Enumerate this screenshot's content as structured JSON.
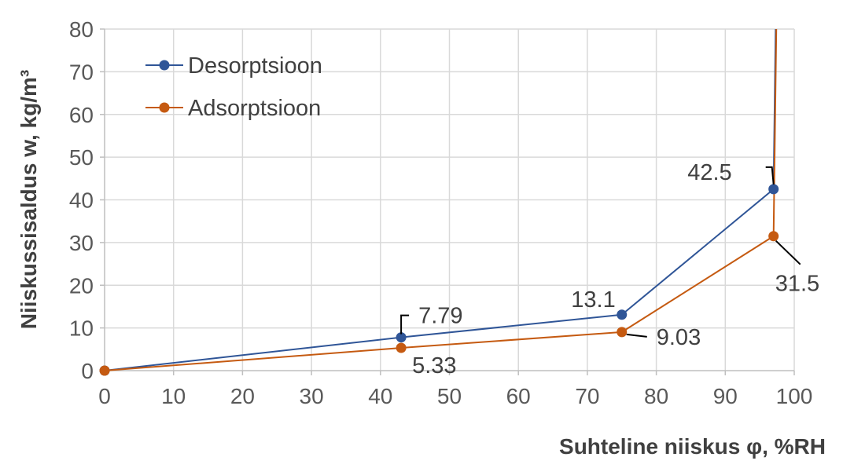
{
  "chart_data": {
    "type": "line",
    "xlabel": "Suhteline niiskus φ, %RH",
    "ylabel": "Niiskussisaldus w, kg/m³",
    "xlim": [
      0,
      100
    ],
    "ylim": [
      0,
      80
    ],
    "x_ticks": [
      0,
      10,
      20,
      30,
      40,
      50,
      60,
      70,
      80,
      90,
      100
    ],
    "y_ticks": [
      0,
      10,
      20,
      30,
      40,
      50,
      60,
      70,
      80
    ],
    "grid": true,
    "legend_position": "top-left",
    "series": [
      {
        "name": "Desorptsioon",
        "color": "#2f5597",
        "marker_points": [
          {
            "x": 0,
            "y": 0
          },
          {
            "x": 43,
            "y": 7.79,
            "label": "7.79"
          },
          {
            "x": 75,
            "y": 13.1,
            "label": "13.1"
          },
          {
            "x": 97,
            "y": 42.5,
            "label": "42.5"
          }
        ],
        "line_end": {
          "x": 97.3,
          "y": 80
        }
      },
      {
        "name": "Adsorptsioon",
        "color": "#c55a11",
        "marker_points": [
          {
            "x": 0,
            "y": 0
          },
          {
            "x": 43,
            "y": 5.33,
            "label": "5.33"
          },
          {
            "x": 75,
            "y": 9.03,
            "label": "9.03"
          },
          {
            "x": 97,
            "y": 31.5,
            "label": "31.5"
          }
        ],
        "line_end": {
          "x": 97.4,
          "y": 80
        }
      }
    ]
  }
}
